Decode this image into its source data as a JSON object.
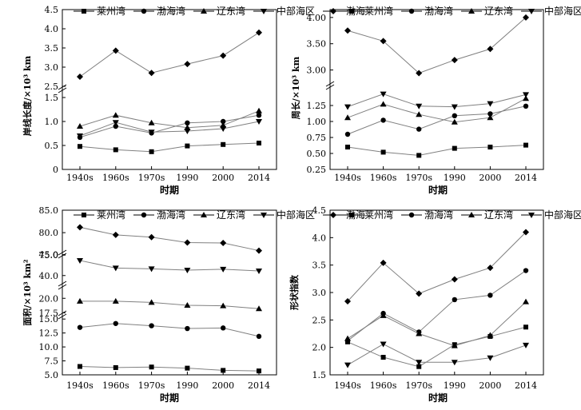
{
  "legend_labels": [
    "莱州湾",
    "渤海湾",
    "辽东湾",
    "中部海区",
    "渤海"
  ],
  "series_colors": {
    "line": "#808080",
    "marker": "#000000"
  },
  "chart_data": [
    {
      "id": "a",
      "type": "line",
      "title": "",
      "xlabel": "时期",
      "ylabel": "岸线长度/×10³ km",
      "categories": [
        "1940s",
        "1960s",
        "1970s",
        "1990",
        "2000",
        "2014"
      ],
      "series": [
        {
          "name": "莱州湾",
          "marker": "square",
          "values": [
            0.48,
            0.41,
            0.37,
            0.49,
            0.52,
            0.55
          ]
        },
        {
          "name": "渤海湾",
          "marker": "circle",
          "values": [
            0.67,
            0.9,
            0.76,
            0.97,
            1.0,
            1.13
          ]
        },
        {
          "name": "辽东湾",
          "marker": "triangle-up",
          "values": [
            0.9,
            1.13,
            0.97,
            0.87,
            0.92,
            1.22
          ]
        },
        {
          "name": "中部海区",
          "marker": "triangle-down",
          "values": [
            0.7,
            0.98,
            0.78,
            0.8,
            0.85,
            1.0
          ]
        },
        {
          "name": "渤海",
          "marker": "diamond",
          "values": [
            2.75,
            3.43,
            2.85,
            3.08,
            3.3,
            3.9
          ]
        }
      ],
      "axis_break": true,
      "lower_axis": {
        "ylim": [
          0,
          1.6
        ],
        "ticks": [
          "0",
          "0.5",
          "1.0",
          "1.5"
        ]
      },
      "upper_axis": {
        "ylim": [
          2.5,
          4.5
        ],
        "ticks": [
          "2.5",
          "3.0",
          "3.5",
          "4.0",
          "4.5"
        ]
      }
    },
    {
      "id": "b",
      "type": "line",
      "title": "",
      "xlabel": "时期",
      "ylabel": "周长/×10³ km",
      "categories": [
        "1940s",
        "1960s",
        "1970s",
        "1990",
        "2000",
        "2014"
      ],
      "series": [
        {
          "name": "莱州湾",
          "marker": "square",
          "values": [
            0.6,
            0.52,
            0.47,
            0.58,
            0.6,
            0.63
          ]
        },
        {
          "name": "渤海湾",
          "marker": "circle",
          "values": [
            0.8,
            1.02,
            0.88,
            1.09,
            1.12,
            1.24
          ]
        },
        {
          "name": "辽东湾",
          "marker": "triangle-up",
          "values": [
            1.06,
            1.27,
            1.11,
            0.99,
            1.06,
            1.36
          ]
        },
        {
          "name": "中部海区",
          "marker": "triangle-down",
          "values": [
            1.23,
            1.43,
            1.24,
            1.23,
            1.28,
            1.42
          ]
        },
        {
          "name": "渤海",
          "marker": "diamond",
          "values": [
            3.75,
            3.55,
            2.94,
            3.19,
            3.4,
            4.0
          ]
        }
      ],
      "axis_break": true,
      "lower_axis": {
        "ylim": [
          0.25,
          1.5
        ],
        "ticks": [
          "0.25",
          "0.50",
          "0.75",
          "1.00",
          "1.25"
        ]
      },
      "upper_axis": {
        "ylim": [
          2.75,
          4.15
        ],
        "ticks": [
          "3.00",
          "3.50",
          "4.00"
        ]
      }
    },
    {
      "id": "c",
      "type": "line",
      "title": "",
      "xlabel": "时期",
      "ylabel": "面积/×10³ km²",
      "categories": [
        "1940s",
        "1960s",
        "1970s",
        "1990",
        "2000",
        "2014"
      ],
      "series": [
        {
          "name": "莱州湾",
          "marker": "square",
          "values": [
            6.5,
            6.3,
            6.4,
            6.2,
            5.8,
            5.7
          ]
        },
        {
          "name": "渤海湾",
          "marker": "circle",
          "values": [
            13.5,
            14.2,
            13.8,
            13.3,
            13.4,
            11.9
          ]
        },
        {
          "name": "辽东湾",
          "marker": "triangle-up",
          "values": [
            19.5,
            19.5,
            19.3,
            18.8,
            18.7,
            18.2
          ]
        },
        {
          "name": "中部海区",
          "marker": "triangle-down",
          "values": [
            43.6,
            41.8,
            41.6,
            41.3,
            41.5,
            41.1
          ]
        },
        {
          "name": "渤海",
          "marker": "diamond",
          "values": [
            81.2,
            79.5,
            79.0,
            77.8,
            77.7,
            76.0
          ]
        }
      ],
      "axis_break": true,
      "segments": [
        {
          "ylim": [
            74.5,
            85.0
          ],
          "ticks": [
            "75.0",
            "80.0",
            "85.0"
          ]
        },
        {
          "ylim": [
            39.0,
            45.5
          ],
          "ticks": [
            "40.0",
            "45.0"
          ]
        },
        {
          "ylim": [
            17.0,
            21.0
          ],
          "ticks": [
            "17.5",
            "20.0"
          ]
        },
        {
          "ylim": [
            5.0,
            15.6
          ],
          "ticks": [
            "5.0",
            "7.5",
            "10.0",
            "12.5",
            "15.0"
          ]
        }
      ]
    },
    {
      "id": "d",
      "type": "line",
      "title": "",
      "xlabel": "时期",
      "ylabel": "形状指数",
      "categories": [
        "1940s",
        "1960s",
        "1970s",
        "1990",
        "2000",
        "2014"
      ],
      "series": [
        {
          "name": "莱州湾",
          "marker": "square",
          "values": [
            2.1,
            1.82,
            1.65,
            2.05,
            2.2,
            2.37
          ]
        },
        {
          "name": "渤海湾",
          "marker": "circle",
          "values": [
            2.12,
            2.62,
            2.28,
            2.87,
            2.95,
            3.4
          ]
        },
        {
          "name": "辽东湾",
          "marker": "triangle-up",
          "values": [
            2.16,
            2.58,
            2.25,
            2.03,
            2.22,
            2.83
          ]
        },
        {
          "name": "中部海区",
          "marker": "triangle-down",
          "values": [
            1.68,
            2.06,
            1.73,
            1.73,
            1.81,
            2.04
          ]
        },
        {
          "name": "渤海",
          "marker": "diamond",
          "values": [
            2.84,
            3.54,
            2.98,
            3.24,
            3.45,
            4.1
          ]
        }
      ],
      "axis_break": false,
      "ylim": [
        1.5,
        4.5
      ],
      "ticks": [
        "1.5",
        "2.0",
        "2.5",
        "3.0",
        "3.5",
        "4.0",
        "4.5"
      ]
    }
  ]
}
